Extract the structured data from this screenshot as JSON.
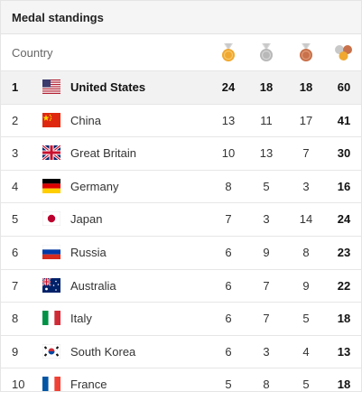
{
  "widget": {
    "title": "Medal standings"
  },
  "header": {
    "country_label": "Country",
    "icons": [
      "gold-medal-icon",
      "silver-medal-icon",
      "bronze-medal-icon",
      "total-medals-icon"
    ]
  },
  "colors": {
    "gold": "#f0a830",
    "silver": "#b8b8b8",
    "bronze": "#c8714a",
    "highlight_row": "#f2f2f2"
  },
  "rows": [
    {
      "rank": "1",
      "country": "United States",
      "flag": "flag-us",
      "gold": "24",
      "silver": "18",
      "bronze": "18",
      "total": "60"
    },
    {
      "rank": "2",
      "country": "China",
      "flag": "flag-cn",
      "gold": "13",
      "silver": "11",
      "bronze": "17",
      "total": "41"
    },
    {
      "rank": "3",
      "country": "Great Britain",
      "flag": "flag-gb",
      "gold": "10",
      "silver": "13",
      "bronze": "7",
      "total": "30"
    },
    {
      "rank": "4",
      "country": "Germany",
      "flag": "flag-de",
      "gold": "8",
      "silver": "5",
      "bronze": "3",
      "total": "16"
    },
    {
      "rank": "5",
      "country": "Japan",
      "flag": "flag-jp",
      "gold": "7",
      "silver": "3",
      "bronze": "14",
      "total": "24"
    },
    {
      "rank": "6",
      "country": "Russia",
      "flag": "flag-ru",
      "gold": "6",
      "silver": "9",
      "bronze": "8",
      "total": "23"
    },
    {
      "rank": "7",
      "country": "Australia",
      "flag": "flag-au",
      "gold": "6",
      "silver": "7",
      "bronze": "9",
      "total": "22"
    },
    {
      "rank": "8",
      "country": "Italy",
      "flag": "flag-it",
      "gold": "6",
      "silver": "7",
      "bronze": "5",
      "total": "18"
    },
    {
      "rank": "9",
      "country": "South Korea",
      "flag": "flag-kr",
      "gold": "6",
      "silver": "3",
      "bronze": "4",
      "total": "13"
    },
    {
      "rank": "10",
      "country": "France",
      "flag": "flag-fr",
      "gold": "5",
      "silver": "8",
      "bronze": "5",
      "total": "18"
    }
  ]
}
